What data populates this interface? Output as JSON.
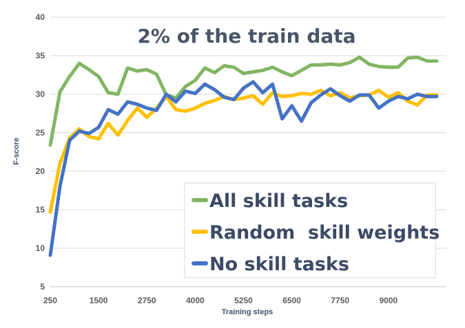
{
  "chart_data": {
    "type": "line",
    "title": "2% of the train data",
    "xlabel": "Training steps",
    "ylabel": "F-score",
    "xlim": [
      250,
      10500
    ],
    "ylim": [
      5,
      40
    ],
    "x_ticks": [
      250,
      1500,
      2750,
      4000,
      5250,
      6500,
      7750,
      9000
    ],
    "x_tick_labels": [
      "250",
      "1500",
      "2750",
      "4000",
      "5250",
      "6500",
      "7750",
      "9000"
    ],
    "y_ticks": [
      5,
      10,
      15,
      20,
      25,
      30,
      35,
      40
    ],
    "y_tick_labels": [
      "5",
      "10",
      "15",
      "20",
      "25",
      "30",
      "35",
      "40"
    ],
    "grid": "horizontal",
    "legend_position": "bottom-right",
    "x": [
      250,
      500,
      750,
      1000,
      1250,
      1500,
      1750,
      2000,
      2250,
      2500,
      2750,
      3000,
      3250,
      3500,
      3750,
      4000,
      4250,
      4500,
      4750,
      5000,
      5250,
      5500,
      5750,
      6000,
      6250,
      6500,
      6750,
      7000,
      7250,
      7500,
      7750,
      8000,
      8250,
      8500,
      8750,
      9000,
      9250,
      9500,
      9750,
      10000,
      10250
    ],
    "series": [
      {
        "name": "All skill tasks",
        "color": "#82b563",
        "values": [
          23.4,
          30.3,
          32.3,
          34.0,
          33.2,
          32.3,
          30.2,
          30.0,
          33.4,
          33.0,
          33.2,
          32.6,
          29.9,
          29.5,
          31.0,
          31.8,
          33.4,
          32.8,
          33.7,
          33.5,
          32.7,
          32.9,
          33.1,
          33.5,
          32.9,
          32.4,
          33.1,
          33.8,
          33.8,
          33.9,
          33.8,
          34.1,
          34.8,
          33.9,
          33.6,
          33.5,
          33.5,
          34.7,
          34.8,
          34.3,
          34.3
        ]
      },
      {
        "name": "Random  skill weights",
        "color": "#ffc000",
        "values": [
          14.7,
          21.0,
          24.3,
          25.5,
          24.5,
          24.2,
          26.2,
          24.7,
          26.6,
          28.2,
          27.0,
          28.2,
          29.7,
          28.0,
          27.8,
          28.2,
          28.8,
          29.2,
          29.7,
          29.3,
          29.5,
          29.8,
          28.7,
          30.2,
          29.7,
          29.8,
          30.1,
          30.0,
          30.5,
          29.8,
          30.2,
          29.5,
          29.8,
          29.9,
          30.5,
          29.6,
          30.2,
          29.1,
          28.6,
          29.9,
          29.9
        ]
      },
      {
        "name": "No skill tasks",
        "color": "#4472c4",
        "values": [
          9.1,
          18.0,
          24.0,
          25.2,
          24.9,
          25.7,
          28.0,
          27.4,
          29.0,
          28.7,
          28.2,
          27.9,
          30.0,
          29.0,
          30.4,
          30.1,
          31.3,
          30.6,
          29.6,
          29.3,
          30.8,
          31.6,
          30.2,
          31.3,
          26.8,
          28.5,
          26.5,
          28.9,
          29.9,
          30.7,
          29.8,
          29.1,
          29.9,
          29.9,
          28.2,
          29.1,
          29.7,
          29.4,
          30.0,
          29.7,
          29.7
        ]
      }
    ]
  }
}
